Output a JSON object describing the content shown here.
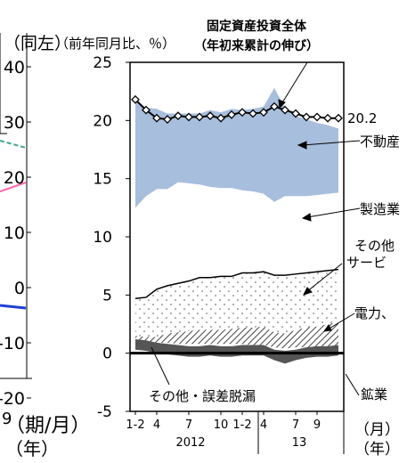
{
  "chart_data": {
    "type": "area",
    "title": "",
    "subtitle": "固定資産投資全体（年初来累計の伸び）",
    "ylabel": "（前年同月比、％）",
    "ylim": [
      -5,
      25
    ],
    "yticks": [
      "25",
      "20",
      "15",
      "10",
      "5",
      "0",
      "-5"
    ],
    "xticks": [
      "1-2",
      "4",
      "7",
      "10",
      "1-2",
      "4",
      "7",
      "9"
    ],
    "xyears": [
      "2012",
      "13"
    ],
    "xunit_month": "（月）",
    "xunit_year": "（年）",
    "series": [
      {
        "name": "その他・誤差脱漏",
        "color": "#555555",
        "values": [
          0.3,
          0.2,
          0.0,
          -0.1,
          -0.2,
          -0.3,
          -0.3,
          -0.2,
          -0.3,
          -0.3,
          -0.2,
          -0.2,
          -0.2,
          -0.6,
          -0.9,
          -0.6,
          -0.4,
          -0.3,
          -0.3,
          -0.2
        ]
      },
      {
        "name": "鉱業",
        "color": "#ffffff",
        "values": [
          0.9,
          0.9,
          0.9,
          0.9,
          0.8,
          0.8,
          0.8,
          0.8,
          0.8,
          0.8,
          0.8,
          0.7,
          0.7,
          0.5,
          0.4,
          0.5,
          0.5,
          0.5,
          0.5,
          0.5
        ]
      },
      {
        "name": "電力、…",
        "color": "#aaaaaa",
        "values": [
          0.6,
          0.5,
          0.5,
          0.8,
          1.0,
          1.1,
          1.2,
          1.2,
          1.2,
          1.3,
          1.4,
          1.5,
          1.6,
          1.3,
          1.3,
          1.5,
          1.7,
          1.8,
          2.0,
          2.2
        ]
      },
      {
        "name": "その他サービ…",
        "color": "#f4f4f4",
        "values": [
          3.2,
          3.4,
          4.1,
          4.1,
          4.2,
          4.3,
          4.5,
          4.5,
          4.6,
          4.5,
          4.7,
          4.7,
          4.7,
          4.9,
          5.0,
          4.8,
          4.7,
          4.7,
          4.6,
          4.5
        ]
      },
      {
        "name": "製造業",
        "color": "#ffffff",
        "values": [
          7.8,
          8.7,
          8.6,
          8.3,
          8.7,
          8.4,
          8.0,
          7.8,
          7.6,
          7.6,
          7.1,
          7.0,
          6.7,
          6.3,
          6.8,
          6.7,
          6.6,
          6.6,
          6.6,
          6.6
        ]
      },
      {
        "name": "不動産…",
        "color": "#a8bedd",
        "values": [
          9.2,
          7.6,
          6.9,
          6.5,
          5.9,
          6.0,
          6.1,
          6.6,
          6.5,
          6.8,
          6.9,
          7.1,
          7.5,
          9.8,
          7.6,
          6.9,
          6.6,
          6.2,
          5.9,
          5.5
        ]
      }
    ],
    "total": {
      "name": "固定資産投資全体",
      "color": "#000000",
      "values": [
        21.8,
        20.9,
        20.2,
        20.1,
        20.4,
        20.3,
        20.3,
        20.4,
        20.2,
        20.5,
        20.7,
        20.6,
        20.7,
        21.2,
        20.9,
        20.6,
        20.3,
        20.3,
        20.2,
        20.2
      ]
    },
    "annotations": [
      {
        "text": "20.2"
      },
      {
        "text": "不動産"
      },
      {
        "text": "製造業"
      },
      {
        "text": "その他"
      },
      {
        "text": "サービ"
      },
      {
        "text": "電力、"
      },
      {
        "text": "鉱業"
      },
      {
        "text": "その他・誤差脱漏"
      }
    ]
  },
  "left_chart": {
    "unit_label": "（同左）",
    "yticks": [
      "40",
      "30",
      "20",
      "10",
      "0",
      "-10",
      "-20"
    ],
    "xtick_partial": "9",
    "xunit_label": "（期/月）",
    "xunit_year": "（年）"
  },
  "colors": {
    "teal_dashed": "#3aa88c",
    "pink": "#ff66aa",
    "blue": "#1f3fd6"
  }
}
